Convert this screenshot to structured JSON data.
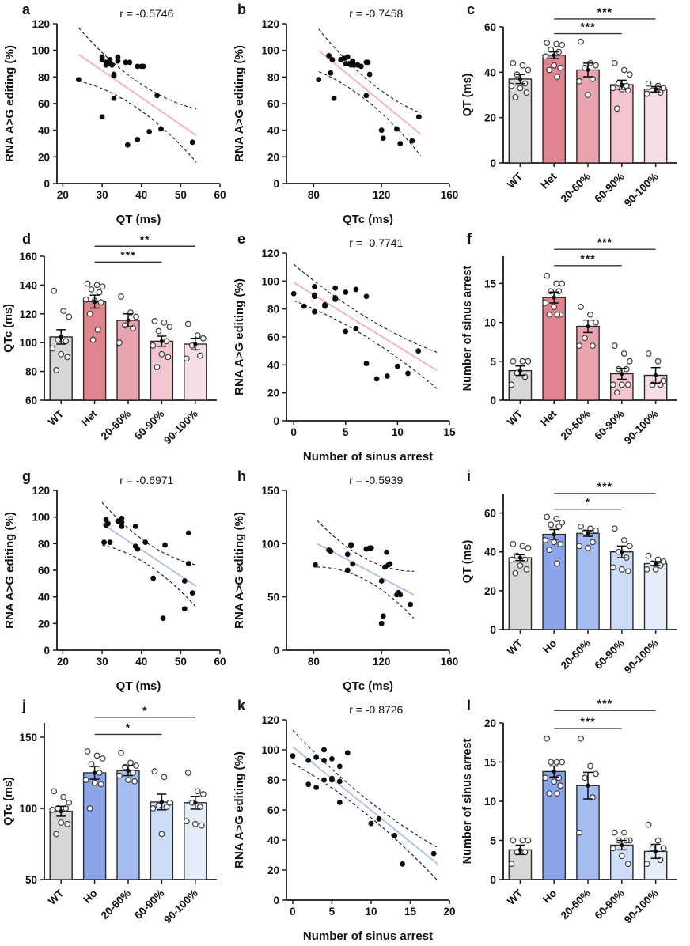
{
  "figure_title": "",
  "colors": {
    "axis": "#1a1a1a",
    "bar_outline": "#2b2b2b",
    "dot_stroke": "#3c3c3c",
    "red_regression_line": "#f6b0b4",
    "blue_regression_line": "#a9c0ec",
    "gray_bar": "#d9d6d7",
    "het_bar": "#e08490",
    "ho_bar": "#8aa5e9"
  },
  "chart_data": [
    {
      "id": "a",
      "type": "scatter",
      "annotation": "r = -0.5746",
      "xlabel": "QT (ms)",
      "ylabel": "RNA A>G editing (%)",
      "xlim": [
        18.5,
        60
      ],
      "ylim": [
        0,
        120
      ],
      "xticks": [
        20,
        30,
        40,
        50,
        60
      ],
      "yticks": [
        0,
        20,
        40,
        60,
        80,
        100,
        120
      ],
      "line_color": "#f6b0b4",
      "line": [
        24,
        97,
        54,
        36
      ],
      "band": [
        10,
        20
      ],
      "points": [
        [
          24,
          78
        ],
        [
          30,
          95
        ],
        [
          30,
          93
        ],
        [
          31,
          91
        ],
        [
          31,
          89
        ],
        [
          32,
          93
        ],
        [
          32,
          90
        ],
        [
          32.5,
          89
        ],
        [
          33,
          82
        ],
        [
          33,
          81
        ],
        [
          34,
          95
        ],
        [
          34,
          92
        ],
        [
          36,
          91
        ],
        [
          37,
          91
        ],
        [
          39,
          88
        ],
        [
          40,
          88
        ],
        [
          40.5,
          88
        ],
        [
          33,
          64
        ],
        [
          30,
          50
        ],
        [
          36.5,
          29
        ],
        [
          39,
          33
        ],
        [
          42,
          39
        ],
        [
          44,
          66
        ],
        [
          45,
          41
        ],
        [
          53,
          31
        ]
      ]
    },
    {
      "id": "b",
      "type": "scatter",
      "annotation": "r = -0.7458",
      "xlabel": "QTc (ms)",
      "ylabel": "RNA A>G editing (%)",
      "xlim": [
        64,
        160
      ],
      "ylim": [
        0,
        120
      ],
      "xticks": [
        80,
        120,
        160
      ],
      "yticks": [
        0,
        20,
        40,
        60,
        80,
        100,
        120
      ],
      "line_color": "#f6b0b4",
      "line": [
        83,
        100,
        143,
        37
      ],
      "band": [
        8,
        16
      ],
      "points": [
        [
          83,
          78
        ],
        [
          89,
          96
        ],
        [
          90,
          83
        ],
        [
          91,
          93
        ],
        [
          92,
          64
        ],
        [
          96,
          93
        ],
        [
          98,
          94
        ],
        [
          99,
          90
        ],
        [
          100,
          95
        ],
        [
          101,
          90
        ],
        [
          102,
          89
        ],
        [
          103,
          92
        ],
        [
          104,
          89
        ],
        [
          106,
          89
        ],
        [
          108,
          88
        ],
        [
          111,
          91
        ],
        [
          112,
          91
        ],
        [
          113,
          82
        ],
        [
          111,
          66
        ],
        [
          120,
          40
        ],
        [
          121,
          34
        ],
        [
          129,
          41
        ],
        [
          131,
          30
        ],
        [
          138,
          32
        ],
        [
          142,
          50
        ]
      ]
    },
    {
      "id": "c",
      "type": "bar",
      "ylabel": "QT (ms)",
      "ylim": [
        0,
        60
      ],
      "yticks": [
        0,
        20,
        40,
        60
      ],
      "categories": [
        "WT",
        "Het",
        "20-60%",
        "60-90%",
        "90-100%"
      ],
      "values": [
        37,
        47.5,
        41,
        34.5,
        32.5
      ],
      "errors": [
        2,
        1.5,
        3,
        2,
        1.2
      ],
      "bar_colors": [
        "#d9d6d7",
        "#e08490",
        "#e7a3ae",
        "#f3c5ce",
        "#f8dfe5"
      ],
      "dots": [
        [
          44,
          43,
          41,
          39,
          35,
          34,
          33,
          31,
          29
        ],
        [
          53,
          52.5,
          52,
          50,
          49,
          47,
          43,
          42,
          41,
          38
        ],
        [
          53.5,
          44,
          43,
          42,
          37,
          36,
          30
        ],
        [
          44,
          41,
          39,
          35,
          34,
          33,
          32.5,
          32,
          24
        ],
        [
          35,
          34,
          33,
          32,
          31,
          30.5
        ]
      ],
      "comparisons": [
        {
          "from": 1,
          "to": 3,
          "label": "***",
          "y": 57
        },
        {
          "from": 1,
          "to": 4,
          "label": "***",
          "y": 63.5
        }
      ]
    },
    {
      "id": "d",
      "type": "bar",
      "ylabel": "QTc (ms)",
      "ylim": [
        60,
        160
      ],
      "yticks": [
        60,
        80,
        100,
        120,
        140,
        160
      ],
      "categories": [
        "WT",
        "Het",
        "20-60%",
        "60-90%",
        "90-100%"
      ],
      "values": [
        104,
        128.5,
        115.5,
        101,
        99
      ],
      "errors": [
        5,
        4.5,
        4.5,
        3.5,
        4
      ],
      "bar_colors": [
        "#d9d6d7",
        "#e08490",
        "#e7a3ae",
        "#f3c5ce",
        "#f8dfe5"
      ],
      "dots": [
        [
          136,
          122,
          118,
          102,
          101,
          96,
          92,
          90,
          81
        ],
        [
          141,
          140,
          139,
          137,
          135,
          130,
          129,
          128,
          120,
          109,
          102
        ],
        [
          132,
          121,
          118,
          112,
          110,
          100
        ],
        [
          115,
          114,
          111,
          108,
          101,
          98,
          92,
          90,
          83
        ],
        [
          113,
          105,
          103,
          98,
          91,
          89
        ]
      ],
      "comparisons": [
        {
          "from": 1,
          "to": 3,
          "label": "***",
          "y": 156
        },
        {
          "from": 1,
          "to": 4,
          "label": "**",
          "y": 167
        }
      ]
    },
    {
      "id": "e",
      "type": "scatter",
      "annotation": "r = -0.7741",
      "xlabel": "Number of sinus arrest",
      "ylabel": "RNA A>G editing (%)",
      "xlim": [
        -0.7,
        15
      ],
      "ylim": [
        0,
        120
      ],
      "xticks": [
        0,
        5,
        10,
        15
      ],
      "yticks": [
        0,
        20,
        40,
        60,
        80,
        100,
        120
      ],
      "line_color": "#f6b0b4",
      "line": [
        0,
        99,
        13.8,
        36
      ],
      "band": [
        7,
        13
      ],
      "points": [
        [
          0,
          91
        ],
        [
          1,
          82
        ],
        [
          2,
          96
        ],
        [
          2,
          90
        ],
        [
          2,
          89
        ],
        [
          2,
          78
        ],
        [
          3,
          83
        ],
        [
          3,
          82
        ],
        [
          4,
          95
        ],
        [
          4,
          88
        ],
        [
          4,
          87
        ],
        [
          5,
          92
        ],
        [
          5,
          64
        ],
        [
          6,
          94
        ],
        [
          6,
          66
        ],
        [
          7,
          89
        ],
        [
          7,
          41
        ],
        [
          8,
          30
        ],
        [
          9,
          32
        ],
        [
          10,
          39
        ],
        [
          11,
          34
        ],
        [
          12,
          50
        ]
      ]
    },
    {
      "id": "f",
      "type": "bar",
      "ylabel": "Number of sinus arrest",
      "ylim": [
        0,
        18.5
      ],
      "yticks": [
        0,
        5,
        10,
        15
      ],
      "categories": [
        "WT",
        "Het",
        "20-60%",
        "60-90%",
        "90-100%"
      ],
      "values": [
        3.8,
        13.2,
        9.5,
        3.4,
        3.2
      ],
      "errors": [
        0.6,
        0.7,
        0.8,
        0.7,
        1.0
      ],
      "bar_colors": [
        "#d9d6d7",
        "#e08490",
        "#e7a3ae",
        "#f3c5ce",
        "#f8dfe5"
      ],
      "dots": [
        [
          5,
          5,
          5,
          3.5,
          3,
          2
        ],
        [
          16,
          15,
          15,
          14,
          14,
          12.5,
          12,
          11,
          11,
          11
        ],
        [
          12,
          11,
          10,
          8,
          7,
          7
        ],
        [
          7,
          6,
          5,
          4,
          4,
          2,
          2,
          2,
          1
        ],
        [
          6,
          5,
          2.5,
          2,
          2
        ]
      ],
      "comparisons": [
        {
          "from": 1,
          "to": 3,
          "label": "***",
          "y": 17.3
        },
        {
          "from": 1,
          "to": 4,
          "label": "***",
          "y": 19.4
        }
      ]
    },
    {
      "id": "g",
      "type": "scatter",
      "annotation": "r = -0.6971",
      "xlabel": "QT (ms)",
      "ylabel": "RNA A>G editing (%)",
      "xlim": [
        18.5,
        60
      ],
      "ylim": [
        0,
        120
      ],
      "xticks": [
        20,
        30,
        40,
        50,
        60
      ],
      "yticks": [
        0,
        20,
        40,
        60,
        80,
        100,
        120
      ],
      "line_color": "#a9c0ec",
      "line": [
        30,
        95,
        54,
        48
      ],
      "band": [
        8,
        16
      ],
      "points": [
        [
          30.5,
          81
        ],
        [
          31,
          98
        ],
        [
          31,
          94
        ],
        [
          31.5,
          95
        ],
        [
          32,
          81
        ],
        [
          34,
          97
        ],
        [
          35,
          99
        ],
        [
          35,
          96
        ],
        [
          35,
          93
        ],
        [
          38.5,
          93
        ],
        [
          38.5,
          78
        ],
        [
          39,
          76
        ],
        [
          41,
          81
        ],
        [
          43,
          54
        ],
        [
          45.5,
          24
        ],
        [
          46,
          79
        ],
        [
          51,
          52
        ],
        [
          51,
          31
        ],
        [
          52,
          88
        ],
        [
          52,
          65
        ],
        [
          53,
          43
        ]
      ]
    },
    {
      "id": "h",
      "type": "scatter",
      "annotation": "r = -0.5939",
      "xlabel": "QTc (ms)",
      "ylabel": "RNA A>G editing (%)",
      "xlim": [
        64,
        160
      ],
      "ylim": [
        0,
        150
      ],
      "xticks": [
        80,
        120,
        160
      ],
      "yticks": [
        0,
        50,
        100,
        150
      ],
      "line_color": "#a9c0ec",
      "line": [
        82,
        100,
        139,
        52
      ],
      "band": [
        10,
        22
      ],
      "points": [
        [
          81,
          80
        ],
        [
          89,
          94
        ],
        [
          90,
          93
        ],
        [
          100,
          90
        ],
        [
          100,
          75
        ],
        [
          102,
          99
        ],
        [
          102,
          98
        ],
        [
          103,
          81
        ],
        [
          111,
          95
        ],
        [
          113,
          96
        ],
        [
          114,
          96
        ],
        [
          120,
          65
        ],
        [
          120,
          25
        ],
        [
          121,
          32
        ],
        [
          122,
          78
        ],
        [
          123,
          92
        ],
        [
          124,
          80
        ],
        [
          125,
          81
        ],
        [
          129,
          52
        ],
        [
          130,
          54
        ],
        [
          131,
          52
        ],
        [
          137,
          43
        ]
      ]
    },
    {
      "id": "i",
      "type": "bar",
      "ylabel": "QT (ms)",
      "ylim": [
        0,
        70
      ],
      "yticks": [
        0,
        20,
        40,
        60
      ],
      "categories": [
        "WT",
        "Ho",
        "20-60%",
        "60-90%",
        "90-100%"
      ],
      "values": [
        37,
        49,
        49.5,
        40,
        34
      ],
      "errors": [
        1.5,
        2.5,
        1.5,
        3,
        1
      ],
      "bar_colors": [
        "#d9d6d7",
        "#8aa5e9",
        "#a5bcf0",
        "#cdddf8",
        "#e5edfb"
      ],
      "dots": [
        [
          44,
          43,
          42,
          38,
          36,
          36,
          33,
          31,
          29
        ],
        [
          58,
          57,
          55,
          54,
          53,
          46,
          45,
          44,
          41,
          34
        ],
        [
          53,
          52,
          51,
          50,
          45,
          43,
          42
        ],
        [
          52,
          46,
          43,
          40,
          37,
          32,
          31,
          30
        ],
        [
          38,
          36,
          35,
          34,
          33,
          31,
          31
        ]
      ],
      "comparisons": [
        {
          "from": 1,
          "to": 3,
          "label": "*",
          "y": 62
        },
        {
          "from": 1,
          "to": 4,
          "label": "***",
          "y": 70
        }
      ]
    },
    {
      "id": "j",
      "type": "bar",
      "ylabel": "QTc (ms)",
      "ylim": [
        50,
        160
      ],
      "yticks": [
        50,
        100,
        150
      ],
      "categories": [
        "WT",
        "Ho",
        "20-60%",
        "60-90%",
        "90-100%"
      ],
      "values": [
        98,
        125,
        126.5,
        104.5,
        104
      ],
      "errors": [
        3.5,
        4.5,
        3.5,
        5.5,
        4.5
      ],
      "bar_colors": [
        "#d9d6d7",
        "#8aa5e9",
        "#a5bcf0",
        "#cdddf8",
        "#e5edfb"
      ],
      "dots": [
        [
          112,
          108,
          104,
          100,
          100,
          99,
          90,
          89,
          82
        ],
        [
          140,
          137,
          135,
          131,
          125,
          120,
          118,
          117,
          100
        ],
        [
          139,
          132,
          130,
          129,
          125,
          123,
          120,
          119
        ],
        [
          126,
          122,
          104,
          102,
          101,
          100,
          82
        ],
        [
          125,
          112,
          110,
          104,
          101,
          91,
          89,
          88
        ]
      ],
      "comparisons": [
        {
          "from": 1,
          "to": 3,
          "label": "*",
          "y": 152
        },
        {
          "from": 1,
          "to": 4,
          "label": "*",
          "y": 164
        }
      ]
    },
    {
      "id": "k",
      "type": "scatter",
      "annotation": "r = -0.8726",
      "xlabel": "Number of sinus arrest",
      "ylabel": "RNA A>G editing (%)",
      "xlim": [
        -0.8,
        20
      ],
      "ylim": [
        0,
        120
      ],
      "xticks": [
        0,
        5,
        10,
        15,
        20
      ],
      "yticks": [
        0,
        20,
        40,
        60,
        80,
        100,
        120
      ],
      "line_color": "#a9c0ec",
      "line": [
        0,
        102,
        18.5,
        24
      ],
      "band": [
        5,
        11
      ],
      "points": [
        [
          0,
          96
        ],
        [
          2,
          93
        ],
        [
          2,
          77
        ],
        [
          3,
          95
        ],
        [
          3,
          75
        ],
        [
          4,
          100
        ],
        [
          4,
          93
        ],
        [
          4,
          80
        ],
        [
          5,
          94
        ],
        [
          5,
          81
        ],
        [
          5,
          80
        ],
        [
          6,
          89
        ],
        [
          6,
          79
        ],
        [
          6,
          65
        ],
        [
          7,
          98
        ],
        [
          10,
          51
        ],
        [
          11,
          54
        ],
        [
          13,
          43
        ],
        [
          14,
          24
        ],
        [
          18,
          31
        ]
      ]
    },
    {
      "id": "l",
      "type": "bar",
      "ylabel": "Number of sinus arrest",
      "ylim": [
        0,
        20
      ],
      "yticks": [
        0,
        5,
        10,
        15,
        20
      ],
      "categories": [
        "WT",
        "Ho",
        "20-60%",
        "60-90%",
        "90-100%"
      ],
      "values": [
        3.8,
        13.8,
        12,
        4.4,
        3.6
      ],
      "errors": [
        0.6,
        0.7,
        1.7,
        0.6,
        0.9
      ],
      "bar_colors": [
        "#d9d6d7",
        "#8aa5e9",
        "#a5bcf0",
        "#cdddf8",
        "#e5edfb"
      ],
      "dots": [
        [
          5,
          5,
          5,
          3.5,
          3.5,
          2
        ],
        [
          18,
          15,
          15,
          15,
          13,
          13,
          12.5,
          12,
          11,
          11
        ],
        [
          18,
          14.5,
          13.5,
          13,
          10.5,
          6
        ],
        [
          6,
          6,
          5,
          5,
          5,
          4,
          3,
          2
        ],
        [
          7,
          5,
          4,
          4,
          2.5,
          2
        ]
      ],
      "comparisons": [
        {
          "from": 1,
          "to": 3,
          "label": "***",
          "y": 19.3
        },
        {
          "from": 1,
          "to": 4,
          "label": "***",
          "y": 21.6
        }
      ]
    }
  ]
}
